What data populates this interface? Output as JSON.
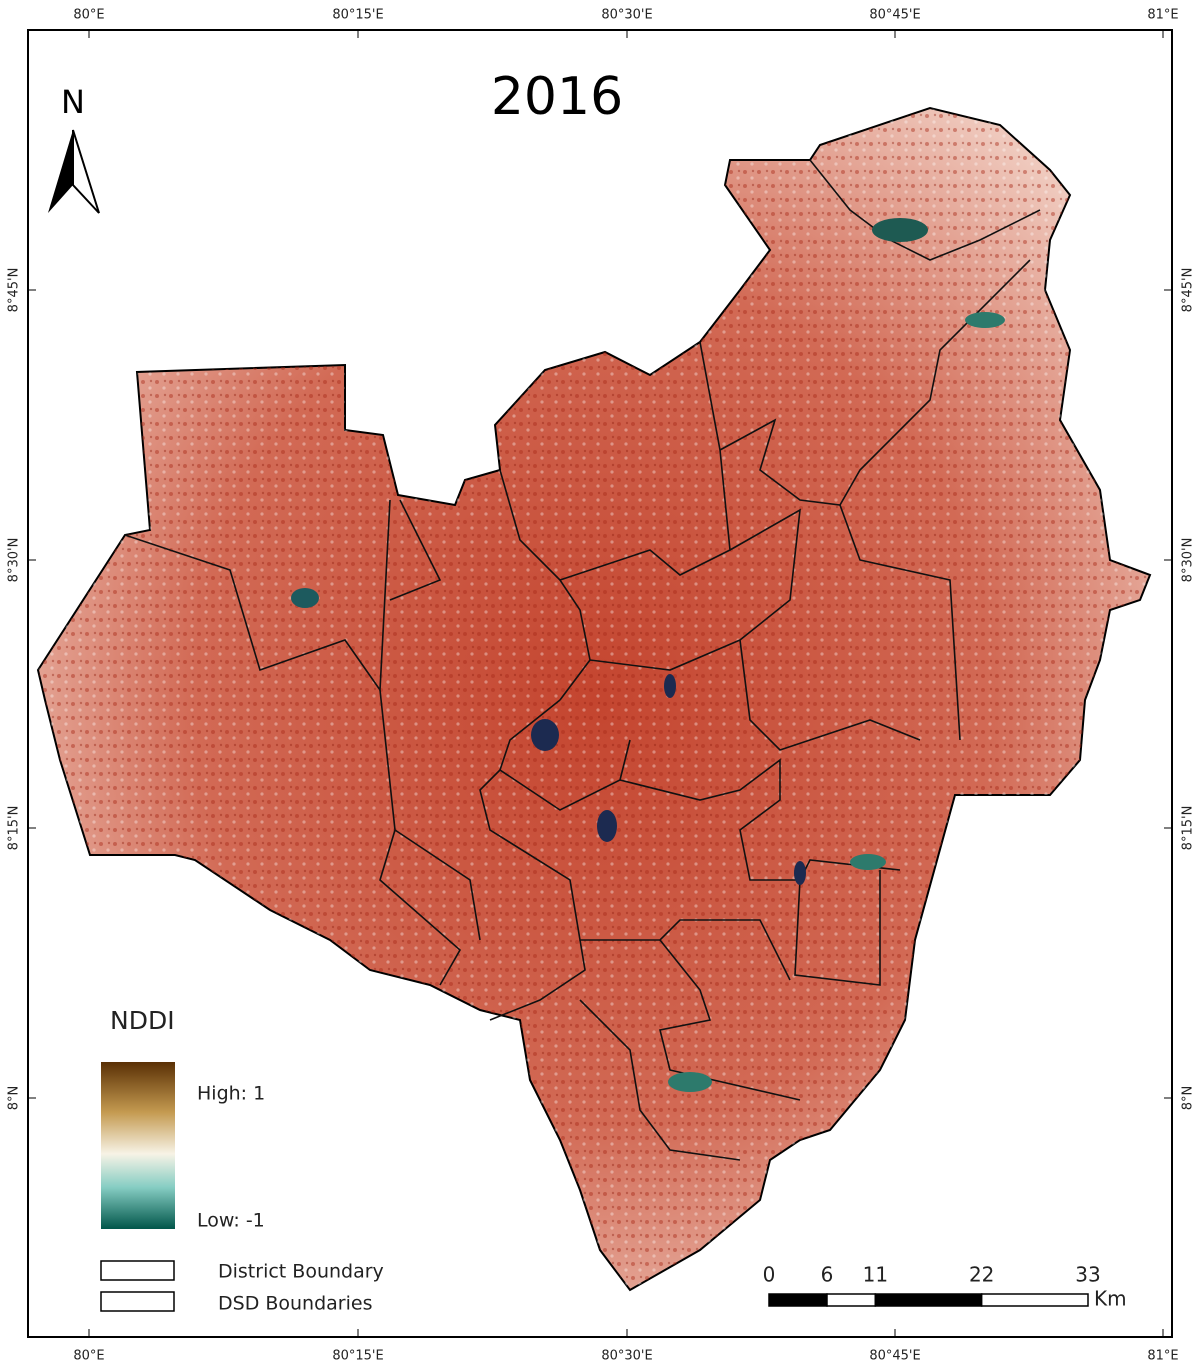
{
  "title": "2016",
  "north_arrow": {
    "label": "N"
  },
  "graticule": {
    "top": [
      "80°E",
      "80°15'E",
      "80°30'E",
      "80°45'E",
      "81°E"
    ],
    "bottom": [
      "80°E",
      "80°15'E",
      "80°30'E",
      "80°45'E",
      "81°E"
    ],
    "left": [
      "8°45'N",
      "8°30'N",
      "8°15'N",
      "8°N"
    ],
    "right": [
      "8°45'N",
      "8°30'N",
      "8°15'N",
      "8°N"
    ]
  },
  "legend": {
    "title": "NDDI",
    "high": "High: 1",
    "low": "Low: -1",
    "items": [
      "District Boundary",
      "DSD Boundaries"
    ]
  },
  "scale_bar": {
    "ticks": [
      0,
      6,
      11,
      22,
      33
    ],
    "unit": "Km"
  }
}
